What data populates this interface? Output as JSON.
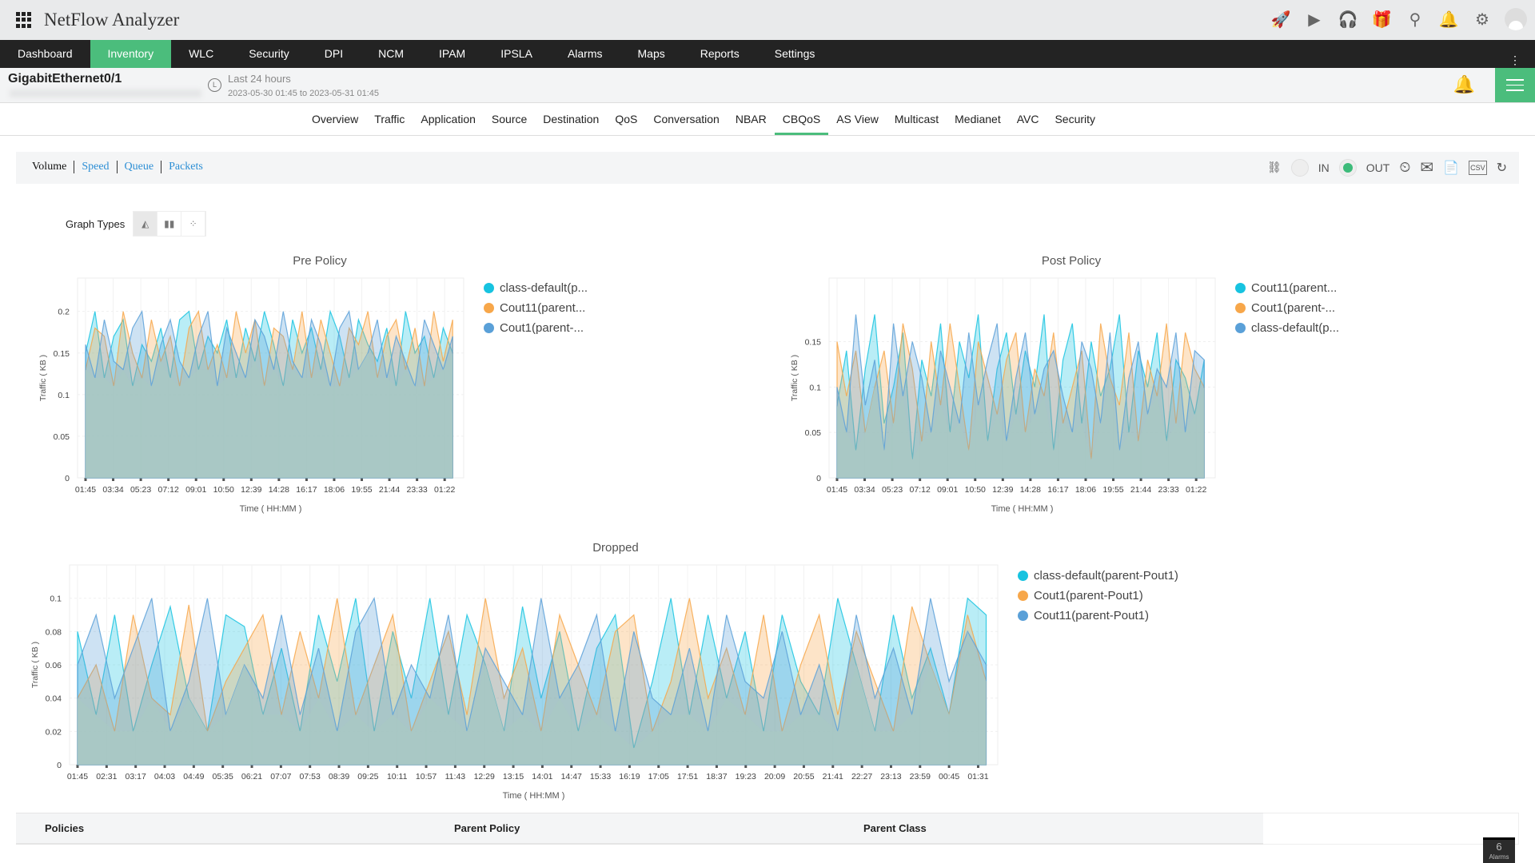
{
  "app": {
    "title": "NetFlow Analyzer"
  },
  "header_icons": [
    "rocket-icon",
    "presentation-icon",
    "headset-icon",
    "gift-icon",
    "search-icon",
    "bell-icon",
    "gear-icon",
    "user-avatar-icon"
  ],
  "nav": {
    "items": [
      "Dashboard",
      "Inventory",
      "WLC",
      "Security",
      "DPI",
      "NCM",
      "IPAM",
      "IPSLA",
      "Alarms",
      "Maps",
      "Reports",
      "Settings"
    ],
    "active": "Inventory"
  },
  "interface": {
    "name": "GigabitEthernet0/1",
    "period": "Last 24 hours",
    "range": "2023-05-30 01:45 to 2023-05-31 01:45"
  },
  "tabs": {
    "items": [
      "Overview",
      "Traffic",
      "Application",
      "Source",
      "Destination",
      "QoS",
      "Conversation",
      "NBAR",
      "CBQoS",
      "AS View",
      "Multicast",
      "Medianet",
      "AVC",
      "Security"
    ],
    "active": "CBQoS"
  },
  "view_toggle": {
    "items": [
      "Volume",
      "Speed",
      "Queue",
      "Packets"
    ],
    "active": "Volume"
  },
  "direction": {
    "in_label": "IN",
    "out_label": "OUT",
    "selected": "OUT"
  },
  "graph_types": {
    "label": "Graph Types",
    "options": [
      "area",
      "bar",
      "scatter"
    ],
    "selected": "area"
  },
  "colors": {
    "cyan": "#17c3e0",
    "orange": "#f7a74a",
    "blue": "#5aa0d8",
    "accent": "#4bbd7c",
    "fill": "#a8c8c4"
  },
  "chart_data": [
    {
      "type": "area",
      "title": "Pre Policy",
      "xlabel": "Time ( HH:MM )",
      "ylabel": "Traffic ( KB )",
      "ylim": [
        0,
        0.24
      ],
      "yticks": [
        0,
        0.05,
        0.1,
        0.15,
        0.2
      ],
      "ytick_labels": [
        "0",
        "0.05",
        "0.1",
        "0.15",
        "0.2"
      ],
      "xticks": [
        "01:45",
        "03:34",
        "05:23",
        "07:12",
        "09:01",
        "10:50",
        "12:39",
        "14:28",
        "16:17",
        "18:06",
        "19:55",
        "21:44",
        "23:33",
        "01:22"
      ],
      "grid": true,
      "legend": "right",
      "series": [
        {
          "name": "class-default(p...",
          "color": "#17c3e0",
          "values": [
            0.15,
            0.2,
            0.12,
            0.17,
            0.19,
            0.11,
            0.16,
            0.14,
            0.18,
            0.12,
            0.19,
            0.2,
            0.13,
            0.17,
            0.15,
            0.19,
            0.12,
            0.18,
            0.14,
            0.2,
            0.16,
            0.11,
            0.19,
            0.15,
            0.18,
            0.13,
            0.2,
            0.17,
            0.12,
            0.19,
            0.16,
            0.14,
            0.18,
            0.11,
            0.2,
            0.15,
            0.17,
            0.12,
            0.18,
            0.15
          ]
        },
        {
          "name": "Cout11(parent...",
          "color": "#f7a74a",
          "values": [
            0.13,
            0.18,
            0.17,
            0.11,
            0.2,
            0.15,
            0.12,
            0.19,
            0.14,
            0.17,
            0.11,
            0.18,
            0.2,
            0.13,
            0.16,
            0.12,
            0.2,
            0.15,
            0.19,
            0.11,
            0.18,
            0.17,
            0.13,
            0.2,
            0.12,
            0.19,
            0.15,
            0.11,
            0.18,
            0.16,
            0.2,
            0.12,
            0.17,
            0.19,
            0.13,
            0.18,
            0.11,
            0.2,
            0.14,
            0.19
          ]
        },
        {
          "name": "Cout1(parent-...",
          "color": "#5aa0d8",
          "values": [
            0.16,
            0.12,
            0.19,
            0.14,
            0.13,
            0.18,
            0.2,
            0.11,
            0.16,
            0.19,
            0.14,
            0.12,
            0.17,
            0.2,
            0.11,
            0.18,
            0.15,
            0.12,
            0.19,
            0.17,
            0.13,
            0.2,
            0.14,
            0.12,
            0.19,
            0.16,
            0.11,
            0.18,
            0.2,
            0.13,
            0.15,
            0.19,
            0.12,
            0.17,
            0.14,
            0.11,
            0.19,
            0.16,
            0.13,
            0.17
          ]
        }
      ]
    },
    {
      "type": "area",
      "title": "Post Policy",
      "xlabel": "Time ( HH:MM )",
      "ylabel": "Traffic ( KB )",
      "ylim": [
        0,
        0.22
      ],
      "yticks": [
        0,
        0.05,
        0.1,
        0.15
      ],
      "ytick_labels": [
        "0",
        "0.05",
        "0.1",
        "0.15"
      ],
      "xticks": [
        "01:45",
        "03:34",
        "05:23",
        "07:12",
        "09:01",
        "10:50",
        "12:39",
        "14:28",
        "16:17",
        "18:06",
        "19:55",
        "21:44",
        "23:33",
        "01:22"
      ],
      "grid": true,
      "legend": "right",
      "series": [
        {
          "name": "Cout11(parent...",
          "color": "#17c3e0",
          "values": [
            0.08,
            0.14,
            0.03,
            0.12,
            0.18,
            0.06,
            0.1,
            0.16,
            0.02,
            0.13,
            0.09,
            0.17,
            0.05,
            0.15,
            0.11,
            0.18,
            0.04,
            0.12,
            0.16,
            0.07,
            0.14,
            0.1,
            0.18,
            0.03,
            0.13,
            0.17,
            0.06,
            0.15,
            0.09,
            0.12,
            0.18,
            0.05,
            0.14,
            0.1,
            0.16,
            0.04,
            0.13,
            0.11,
            0.07,
            0.13
          ]
        },
        {
          "name": "Cout1(parent-...",
          "color": "#f7a74a",
          "values": [
            0.15,
            0.09,
            0.14,
            0.05,
            0.1,
            0.14,
            0.06,
            0.17,
            0.12,
            0.04,
            0.15,
            0.08,
            0.17,
            0.1,
            0.03,
            0.15,
            0.11,
            0.07,
            0.13,
            0.16,
            0.05,
            0.12,
            0.09,
            0.16,
            0.06,
            0.1,
            0.14,
            0.02,
            0.17,
            0.11,
            0.08,
            0.16,
            0.04,
            0.13,
            0.09,
            0.17,
            0.06,
            0.16,
            0.12,
            0.1
          ]
        },
        {
          "name": "class-default(p...",
          "color": "#5aa0d8",
          "values": [
            0.1,
            0.05,
            0.18,
            0.08,
            0.13,
            0.03,
            0.17,
            0.09,
            0.15,
            0.11,
            0.05,
            0.14,
            0.1,
            0.06,
            0.16,
            0.08,
            0.13,
            0.17,
            0.04,
            0.11,
            0.16,
            0.07,
            0.12,
            0.14,
            0.09,
            0.05,
            0.15,
            0.12,
            0.06,
            0.16,
            0.03,
            0.11,
            0.15,
            0.07,
            0.12,
            0.1,
            0.16,
            0.05,
            0.14,
            0.13
          ]
        }
      ]
    },
    {
      "type": "area",
      "title": "Dropped",
      "xlabel": "Time ( HH:MM )",
      "ylabel": "Traffic ( KB )",
      "ylim": [
        0,
        0.12
      ],
      "yticks": [
        0,
        0.02,
        0.04,
        0.06,
        0.08,
        0.1
      ],
      "ytick_labels": [
        "0",
        "0.02",
        "0.04",
        "0.06",
        "0.08",
        "0.1"
      ],
      "xticks": [
        "01:45",
        "02:31",
        "03:17",
        "04:03",
        "04:49",
        "05:35",
        "06:21",
        "07:07",
        "07:53",
        "08:39",
        "09:25",
        "10:11",
        "10:57",
        "11:43",
        "12:29",
        "13:15",
        "14:01",
        "14:47",
        "15:33",
        "16:19",
        "17:05",
        "17:51",
        "18:37",
        "19:23",
        "20:09",
        "20:55",
        "21:41",
        "22:27",
        "23:13",
        "23:59",
        "00:45",
        "01:31"
      ],
      "grid": true,
      "legend": "right",
      "series": [
        {
          "name": "class-default(parent-Pout1)",
          "color": "#17c3e0",
          "values": [
            0.08,
            0.03,
            0.09,
            0.02,
            0.06,
            0.095,
            0.04,
            0.02,
            0.09,
            0.083,
            0.03,
            0.07,
            0.02,
            0.09,
            0.05,
            0.1,
            0.02,
            0.08,
            0.04,
            0.1,
            0.03,
            0.09,
            0.06,
            0.02,
            0.095,
            0.04,
            0.08,
            0.02,
            0.07,
            0.09,
            0.01,
            0.05,
            0.1,
            0.03,
            0.09,
            0.04,
            0.08,
            0.02,
            0.09,
            0.05,
            0.03,
            0.1,
            0.06,
            0.02,
            0.09,
            0.04,
            0.07,
            0.03,
            0.1,
            0.09
          ]
        },
        {
          "name": "Cout1(parent-Pout1)",
          "color": "#f7a74a",
          "values": [
            0.04,
            0.06,
            0.02,
            0.09,
            0.04,
            0.03,
            0.096,
            0.02,
            0.05,
            0.07,
            0.09,
            0.03,
            0.08,
            0.04,
            0.1,
            0.03,
            0.06,
            0.09,
            0.02,
            0.05,
            0.08,
            0.03,
            0.1,
            0.04,
            0.07,
            0.02,
            0.09,
            0.06,
            0.03,
            0.08,
            0.09,
            0.02,
            0.05,
            0.1,
            0.04,
            0.07,
            0.03,
            0.09,
            0.02,
            0.06,
            0.09,
            0.03,
            0.08,
            0.05,
            0.02,
            0.095,
            0.06,
            0.03,
            0.09,
            0.05
          ]
        },
        {
          "name": "Cout11(parent-Pout1)",
          "color": "#5aa0d8",
          "values": [
            0.06,
            0.09,
            0.04,
            0.07,
            0.1,
            0.02,
            0.05,
            0.1,
            0.03,
            0.06,
            0.04,
            0.09,
            0.03,
            0.07,
            0.02,
            0.08,
            0.1,
            0.03,
            0.06,
            0.04,
            0.09,
            0.02,
            0.07,
            0.05,
            0.03,
            0.1,
            0.04,
            0.06,
            0.09,
            0.02,
            0.08,
            0.04,
            0.03,
            0.07,
            0.02,
            0.09,
            0.05,
            0.04,
            0.08,
            0.03,
            0.06,
            0.02,
            0.09,
            0.04,
            0.07,
            0.03,
            0.1,
            0.05,
            0.08,
            0.06
          ]
        }
      ]
    }
  ],
  "policies_table": {
    "headers": [
      "Policies",
      "Parent Policy",
      "Parent Class"
    ]
  },
  "alarms_badge": {
    "count": "6",
    "label": "Alarms"
  }
}
